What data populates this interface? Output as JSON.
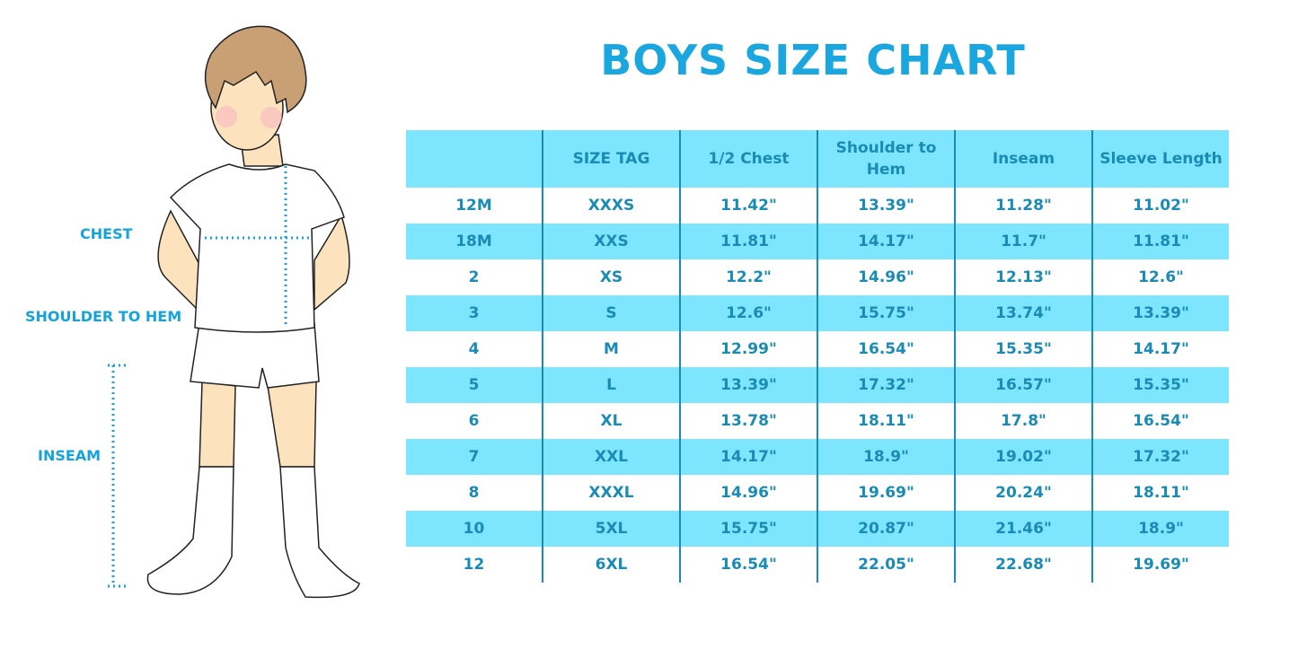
{
  "title": "BOYS SIZE CHART",
  "labels": {
    "chest": "CHEST",
    "shoulder_to_hem": "SHOULDER TO HEM",
    "inseam": "INSEAM"
  },
  "colors": {
    "title": "#1aa6df",
    "stripe": "#7de5fd",
    "text": "#1a8bb4"
  },
  "chart_data": {
    "type": "table",
    "title": "BOYS SIZE CHART",
    "columns": [
      "",
      "SIZE TAG",
      "1/2 Chest",
      "Shoulder to Hem",
      "Inseam",
      "Sleeve Length"
    ],
    "rows": [
      [
        "12M",
        "XXXS",
        "11.42\"",
        "13.39\"",
        "11.28\"",
        "11.02\""
      ],
      [
        "18M",
        "XXS",
        "11.81\"",
        "14.17\"",
        "11.7\"",
        "11.81\""
      ],
      [
        "2",
        "XS",
        "12.2\"",
        "14.96\"",
        "12.13\"",
        "12.6\""
      ],
      [
        "3",
        "S",
        "12.6\"",
        "15.75\"",
        "13.74\"",
        "13.39\""
      ],
      [
        "4",
        "M",
        "12.99\"",
        "16.54\"",
        "15.35\"",
        "14.17\""
      ],
      [
        "5",
        "L",
        "13.39\"",
        "17.32\"",
        "16.57\"",
        "15.35\""
      ],
      [
        "6",
        "XL",
        "13.78\"",
        "18.11\"",
        "17.8\"",
        "16.54\""
      ],
      [
        "7",
        "XXL",
        "14.17\"",
        "18.9\"",
        "19.02\"",
        "17.32\""
      ],
      [
        "8",
        "XXXL",
        "14.96\"",
        "19.69\"",
        "20.24\"",
        "18.11\""
      ],
      [
        "10",
        "5XL",
        "15.75\"",
        "20.87\"",
        "21.46\"",
        "18.9\""
      ],
      [
        "12",
        "6XL",
        "16.54\"",
        "22.05\"",
        "22.68\"",
        "19.69\""
      ]
    ]
  }
}
